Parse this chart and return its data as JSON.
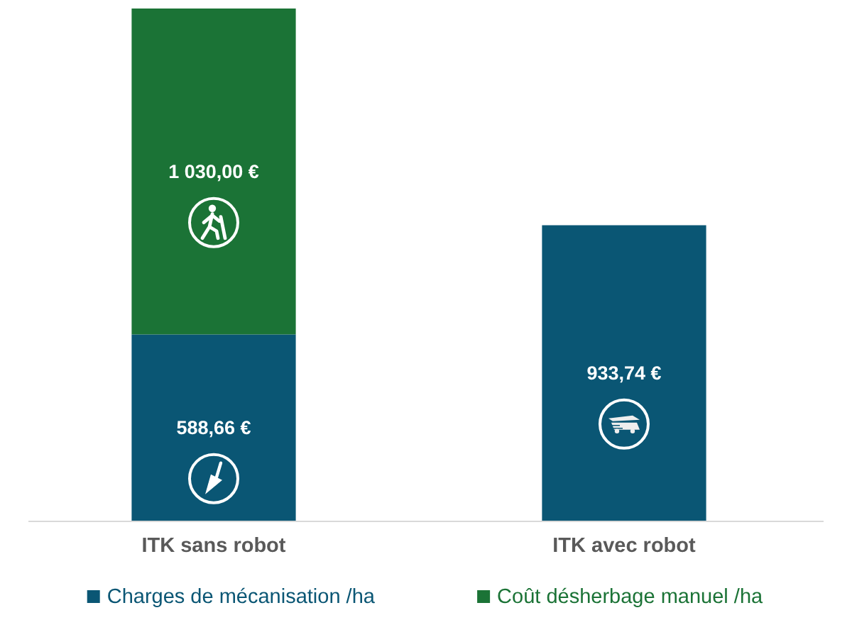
{
  "chart_data": {
    "type": "bar",
    "stacked": true,
    "categories": [
      "ITK sans robot",
      "ITK avec robot"
    ],
    "series": [
      {
        "name": "Charges de mécanisation /ha",
        "color": "#0a5674",
        "values": [
          588.66,
          933.74
        ],
        "value_labels": [
          "588,66 €",
          "933,74 €"
        ]
      },
      {
        "name": "Coût désherbage manuel /ha",
        "color": "#1b7336",
        "values": [
          1030.0,
          null
        ],
        "value_labels": [
          "1 030,00 €",
          null
        ]
      }
    ],
    "legend": "bottom"
  }
}
